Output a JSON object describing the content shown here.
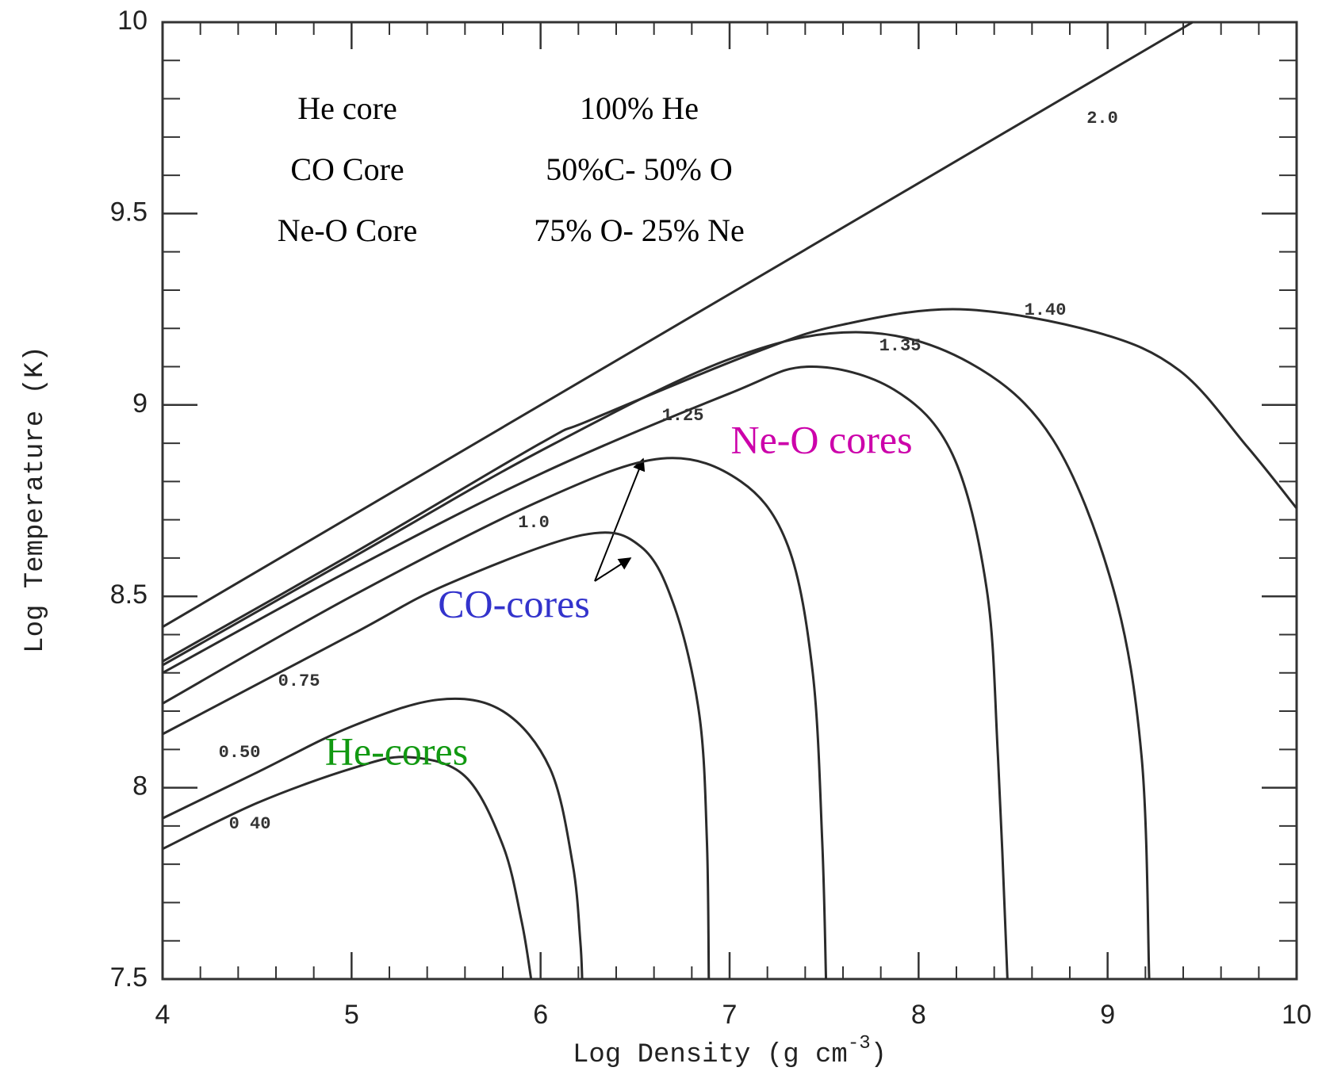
{
  "chart_data": {
    "type": "line",
    "xlabel": [
      "Log Density (g cm",
      "-3",
      ")"
    ],
    "ylabel": "Log Temperature (K)",
    "xlim": [
      4,
      10
    ],
    "ylim": [
      7.5,
      10
    ],
    "xticks": [
      4,
      5,
      6,
      7,
      8,
      9,
      10
    ],
    "yticks": [
      7.5,
      8,
      8.5,
      9,
      9.5,
      10
    ],
    "series": [
      {
        "name": "2.0",
        "color": "#2b2b2b",
        "x": [
          4,
          9.45
        ],
        "values": [
          8.42,
          10
        ]
      },
      {
        "name": "1.40",
        "color": "#2b2b2b",
        "x": [
          4,
          5,
          6,
          6.26,
          7.15,
          7.6,
          8.22,
          8.94,
          9.38,
          9.74,
          10
        ],
        "values": [
          8.33,
          8.61,
          8.9,
          8.96,
          9.14,
          9.21,
          9.25,
          9.19,
          9.09,
          8.89,
          8.73
        ]
      },
      {
        "name": "1.35",
        "color": "#2b2b2b",
        "x": [
          4,
          5,
          6,
          7,
          7.69,
          8.27,
          8.71,
          9.03,
          9.18,
          9.22
        ],
        "values": [
          8.32,
          8.6,
          8.88,
          9.12,
          9.19,
          9.11,
          8.91,
          8.52,
          8.08,
          7.5
        ]
      },
      {
        "name": "1.25",
        "color": "#2b2b2b",
        "x": [
          4,
          5,
          6,
          7,
          7.42,
          7.87,
          8.18,
          8.36,
          8.42,
          8.47
        ],
        "values": [
          8.3,
          8.57,
          8.82,
          9.03,
          9.1,
          9.04,
          8.87,
          8.52,
          8.08,
          7.5
        ]
      },
      {
        "name": "1.0",
        "color": "#2b2b2b",
        "x": [
          4,
          5,
          6,
          6.64,
          7.06,
          7.31,
          7.44,
          7.49,
          7.51
        ],
        "values": [
          8.22,
          8.5,
          8.75,
          8.86,
          8.8,
          8.63,
          8.3,
          7.86,
          7.5
        ]
      },
      {
        "name": "0.75",
        "color": "#2b2b2b",
        "x": [
          4,
          5,
          5.5,
          6.22,
          6.53,
          6.71,
          6.84,
          6.88,
          6.89
        ],
        "values": [
          8.14,
          8.4,
          8.53,
          8.66,
          8.63,
          8.47,
          8.19,
          7.86,
          7.5
        ]
      },
      {
        "name": "0.50",
        "color": "#2b2b2b",
        "x": [
          4,
          4.5,
          5,
          5.46,
          5.8,
          6.05,
          6.17,
          6.21,
          6.22
        ],
        "values": [
          7.92,
          8.04,
          8.16,
          8.23,
          8.2,
          8.05,
          7.8,
          7.6,
          7.5
        ]
      },
      {
        "name": "0 40",
        "color": "#2b2b2b",
        "x": [
          4,
          4.5,
          5,
          5.3,
          5.6,
          5.8,
          5.9,
          5.95
        ],
        "values": [
          7.84,
          7.96,
          8.05,
          8.08,
          8.03,
          7.85,
          7.65,
          7.5
        ]
      }
    ],
    "table": [
      [
        "He core",
        "100% He"
      ],
      [
        "CO Core",
        "50%C- 50% O"
      ],
      [
        "Ne-O Core",
        "75% O- 25% Ne"
      ]
    ],
    "annotations": [
      {
        "text": "Ne-O cores",
        "color": "#cc00aa"
      },
      {
        "text": "CO-cores",
        "color": "#3333cc"
      },
      {
        "text": "He-cores",
        "color": "#119911"
      }
    ]
  }
}
